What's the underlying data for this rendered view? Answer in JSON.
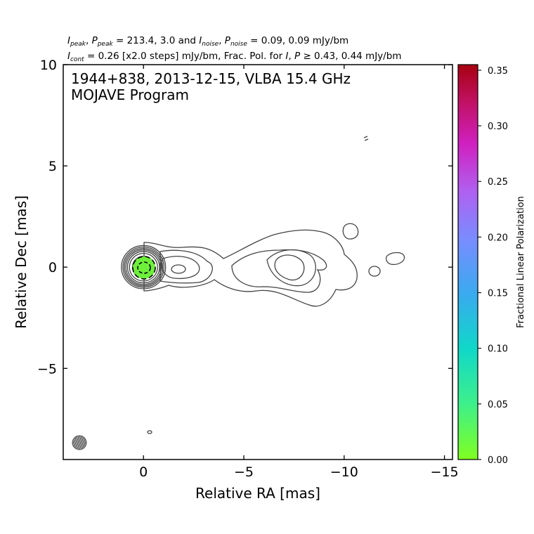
{
  "header": {
    "line1": "I_peak, P_peak = 213.4, 3.0 and I_noise, P_noise = 0.09, 0.09 mJy/bm",
    "line1_parts": {
      "ip": "I",
      "ip_sub": "peak",
      "pp": "P",
      "pp_sub": "peak",
      "mid": " = 213.4, 3.0 and ",
      "in": "I",
      "in_sub": "noise",
      "pn": "P",
      "pn_sub": "noise",
      "end": " = 0.09, 0.09 mJy/bm"
    },
    "line2_parts": {
      "ic": "I",
      "ic_sub": "cont",
      "a": " = 0.26 [x2.0 steps] mJy/bm, Frac. Pol. for ",
      "i": "I",
      "comma": ", ",
      "p": "P",
      "ge": " ≥ 0.43, 0.44 mJy/bm"
    }
  },
  "inset": {
    "line1": "1944+838, 2013-12-15, VLBA 15.4 GHz",
    "line2": "MOJAVE Program"
  },
  "chart_data": {
    "type": "heatmap",
    "subtype": "radio contour map with fractional polarization color overlay",
    "source": "1944+838",
    "epoch": "2013-12-15",
    "instrument": "VLBA 15.4 GHz",
    "program": "MOJAVE Program",
    "xlabel": "Relative RA [mas]",
    "ylabel": "Relative Dec [mas]",
    "xlim": [
      4.0,
      -15.4
    ],
    "ylim": [
      -9.5,
      10.0
    ],
    "xticks": [
      0,
      -5,
      -10,
      -15
    ],
    "xtick_labels": [
      "0",
      "−5",
      "−10",
      "−15"
    ],
    "yticks": [
      -5,
      0,
      5,
      10
    ],
    "ytick_labels": [
      "−5",
      "0",
      "5",
      "10"
    ],
    "I_peak_mJy_per_beam": 213.4,
    "P_peak_mJy_per_beam": 3.0,
    "I_noise_mJy_per_beam": 0.09,
    "P_noise_mJy_per_beam": 0.09,
    "I_cont_mJy_per_beam": 0.26,
    "contour_step_factor": 2.0,
    "frac_pol_threshold_I_mJy_per_beam": 0.43,
    "frac_pol_threshold_P_mJy_per_beam": 0.44,
    "colorbar": {
      "label": "Fractional Linear Polarization",
      "range": [
        0.0,
        0.355
      ],
      "ticks": [
        0.0,
        0.05,
        0.1,
        0.15,
        0.2,
        0.25,
        0.3,
        0.35
      ],
      "tick_labels": [
        "0.00",
        "0.05",
        "0.10",
        "0.15",
        "0.20",
        "0.25",
        "0.30",
        "0.35"
      ],
      "colors": [
        "#80ff20",
        "#3ef08a",
        "#10d8c8",
        "#3aaaf0",
        "#7a8cff",
        "#b060f0",
        "#d020c0",
        "#c01060",
        "#a80010"
      ]
    },
    "core": {
      "x": 0,
      "y": 0,
      "frac_pol": 0.02
    },
    "core_contour_radii_mas": [
      0.4,
      0.55,
      0.7,
      0.8,
      0.88,
      0.95,
      1.02,
      1.1
    ],
    "jet_components": [
      {
        "x": -1.7,
        "y": -0.1
      },
      {
        "x": -7.2,
        "y": 0.0
      },
      {
        "x": -10.3,
        "y": 1.8
      },
      {
        "x": -11.5,
        "y": -0.2
      },
      {
        "x": -12.5,
        "y": 0.4
      }
    ],
    "beam": {
      "x": 3.1,
      "y": -8.7,
      "bmaj_mas": 0.75,
      "bmin_mas": 0.7,
      "color": "#555555"
    }
  }
}
